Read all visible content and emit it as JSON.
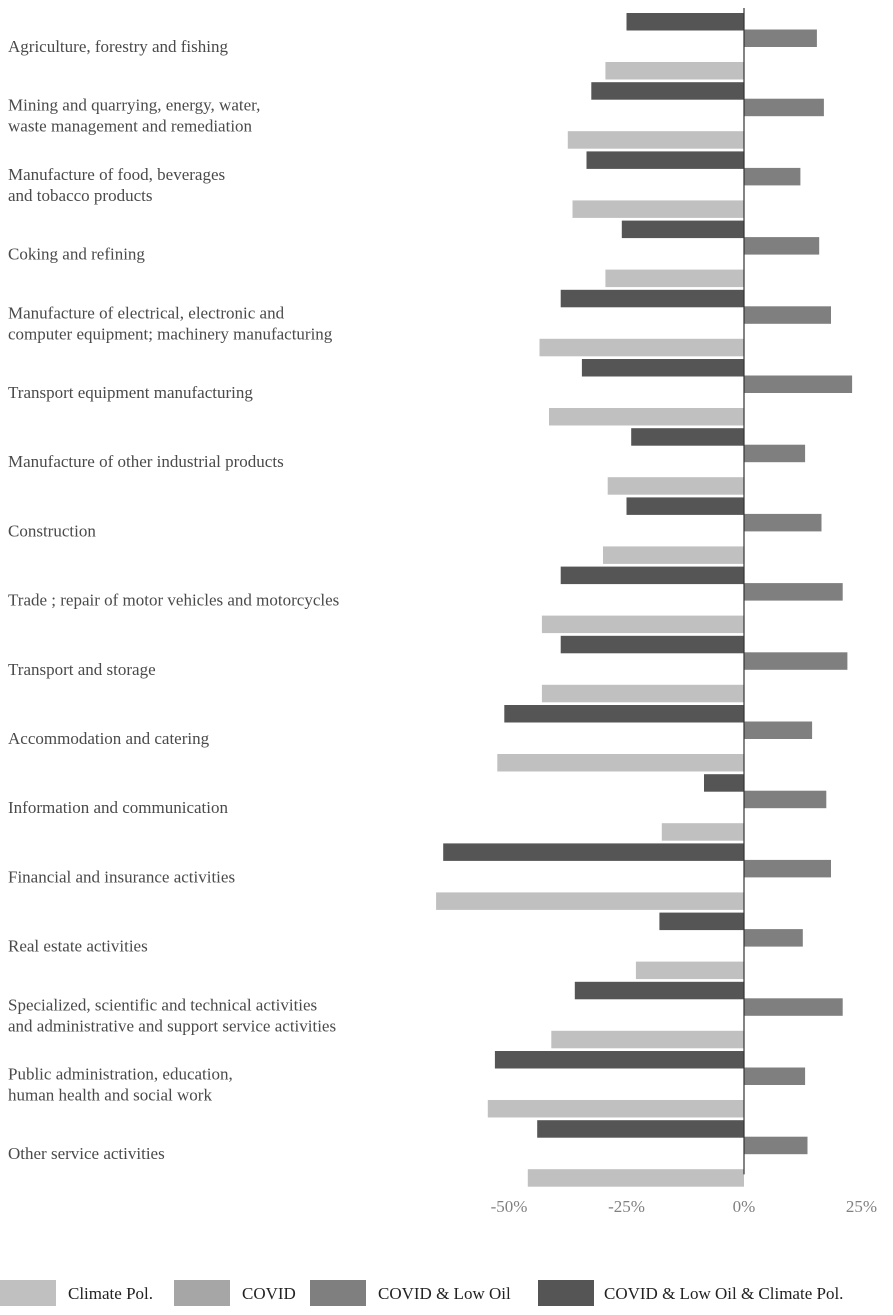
{
  "chart_data": {
    "type": "bar",
    "orientation": "horizontal",
    "categories": [
      [
        "Agriculture, forestry and fishing"
      ],
      [
        "Mining and quarrying, energy, water,",
        " waste management and remediation"
      ],
      [
        "Manufacture of food, beverages",
        " and tobacco products"
      ],
      [
        "Coking and refining"
      ],
      [
        "Manufacture of electrical, electronic and",
        " computer equipment; machinery manufacturing"
      ],
      [
        "Transport equipment manufacturing"
      ],
      [
        "Manufacture of other industrial products"
      ],
      [
        "Construction"
      ],
      [
        "Trade ; repair of motor vehicles and motorcycles"
      ],
      [
        "Transport and storage"
      ],
      [
        "Accommodation and catering"
      ],
      [
        "Information and communication"
      ],
      [
        "Financial and insurance activities"
      ],
      [
        "Real estate activities"
      ],
      [
        "Specialized, scientific and technical activities",
        " and administrative and support service activities"
      ],
      [
        "Public administration, education,",
        " human health and social work"
      ],
      [
        "Other service activities"
      ]
    ],
    "series": [
      {
        "name": "Climate Pol.",
        "color": "#c0c0c0",
        "values": [
          -29.5,
          -37.5,
          -36.5,
          -29.5,
          -43.5,
          -41.5,
          -29,
          -30,
          -43,
          -43,
          -52.5,
          -17.5,
          -65.5,
          -23,
          -41,
          -54.5,
          -46
        ]
      },
      {
        "name": "COVID",
        "color": "#a6a6a6",
        "values": [
          null,
          null,
          null,
          null,
          null,
          null,
          null,
          null,
          null,
          null,
          null,
          null,
          null,
          null,
          null,
          null,
          null
        ]
      },
      {
        "name": "COVID & Low Oil",
        "color": "#7f7f7f",
        "values": [
          15.5,
          17,
          12,
          16,
          18.5,
          23,
          13,
          16.5,
          21,
          22,
          14.5,
          17.5,
          18.5,
          12.5,
          21,
          13,
          13.5
        ]
      },
      {
        "name": "COVID & Low Oil & Climate Pol.",
        "color": "#555555",
        "values": [
          -25,
          -32.5,
          -33.5,
          -26,
          -39,
          -34.5,
          -24,
          -25,
          -39,
          -39,
          -51,
          -8.5,
          -64,
          -18,
          -36,
          -53,
          -44
        ]
      }
    ],
    "x_ticks": [
      "-50%",
      "-25%",
      "0%",
      "25%"
    ],
    "x_tick_values": [
      -50,
      -25,
      0,
      25
    ],
    "xlim": [
      -67,
      28
    ],
    "title": "",
    "xlabel": "",
    "ylabel": "",
    "grid": false,
    "legend_position": "bottom"
  }
}
